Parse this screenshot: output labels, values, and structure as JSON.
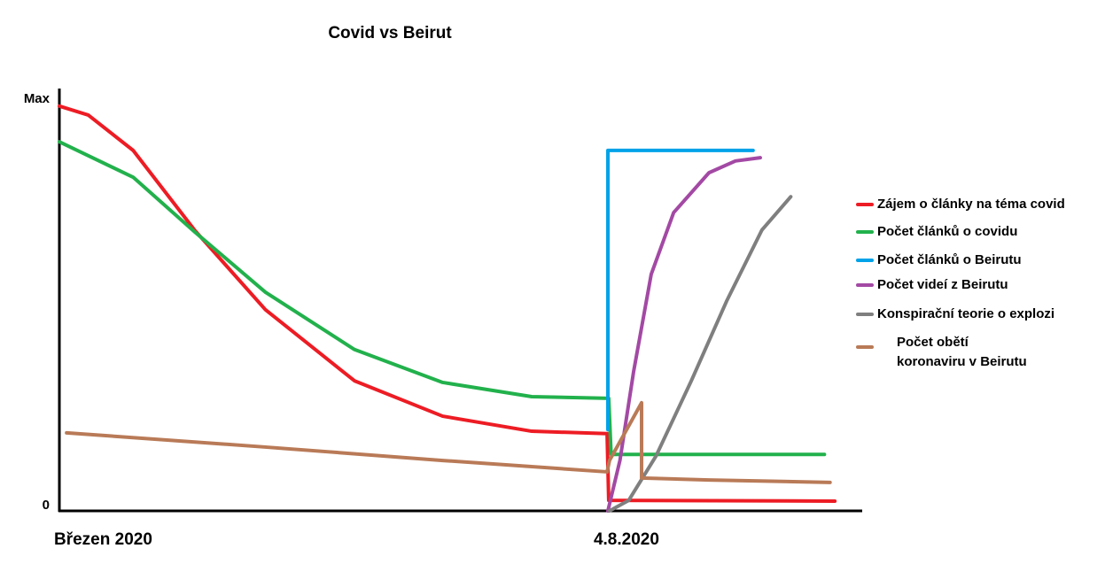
{
  "chart_data": {
    "type": "line",
    "title": "Covid vs Beirut",
    "xlim": [
      0,
      100
    ],
    "ylim": [
      0,
      100
    ],
    "xticks": [
      {
        "value": 0,
        "label": "Březen 2020"
      },
      {
        "value": 68.5,
        "label": "4.8.2020"
      }
    ],
    "yticks": [
      0,
      {
        "value": 100,
        "label": "Max"
      }
    ],
    "series": [
      {
        "name": "Zájem o články na téma covid",
        "color": "#ed1c24",
        "x": [
          0,
          3.6,
          9.2,
          16.9,
          25.7,
          36.8,
          47.8,
          58.9,
          68.3,
          68.5,
          96.7
        ],
        "values": [
          99.6,
          97.4,
          88.7,
          69,
          49.5,
          32,
          23.3,
          19.6,
          19,
          2.6,
          2.4
        ]
      },
      {
        "name": "Počet článků o covidu",
        "color": "#22b14c",
        "x": [
          0,
          9.2,
          16.9,
          25.7,
          36.8,
          47.8,
          58.9,
          68.5,
          68.8,
          95.4
        ],
        "values": [
          90.8,
          82.1,
          68.6,
          53.8,
          39.7,
          31.6,
          28.1,
          27.7,
          13.9,
          13.9
        ]
      },
      {
        "name": "Počet článků o Beirutu",
        "color": "#00a2e8",
        "x": [
          68.4,
          68.4,
          86.5
        ],
        "values": [
          20,
          88.7,
          88.7
        ]
      },
      {
        "name": "Počet videí z Beirutu",
        "color": "#a349a4",
        "x": [
          68.4,
          69.9,
          71.6,
          73.8,
          76.6,
          81,
          84.3,
          87.4
        ],
        "values": [
          0,
          12.4,
          34.2,
          58.2,
          73.4,
          83.2,
          86.1,
          86.9
        ]
      },
      {
        "name": "Konspirační teorie o explozi",
        "color": "#7f7f7f",
        "x": [
          68.6,
          71,
          74.4,
          78.8,
          83.2,
          87.6,
          91.2
        ],
        "values": [
          0,
          2.6,
          13.5,
          32,
          51.6,
          69.1,
          77.3
        ]
      },
      {
        "name": "Počet obětí\nkoronaviru v Beirutu",
        "color": "#b97a57",
        "x": [
          0.9,
          25.7,
          47.8,
          68.3,
          68.6,
          72.6,
          72.6,
          81,
          96.1
        ],
        "values": [
          19.2,
          15.7,
          12.4,
          9.6,
          12.4,
          26.6,
          8.1,
          7.6,
          7
        ]
      }
    ]
  }
}
